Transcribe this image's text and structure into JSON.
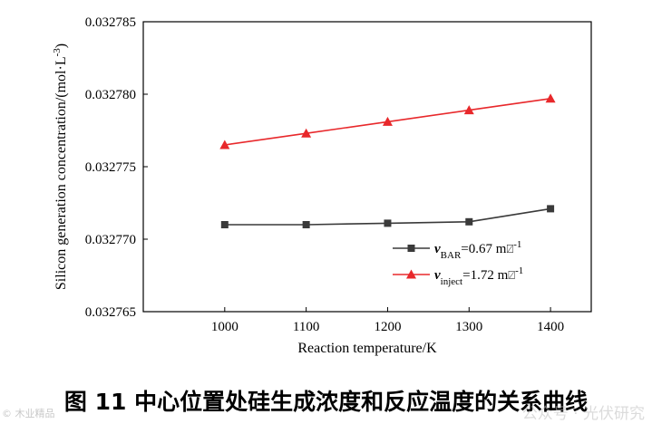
{
  "chart_data": {
    "type": "line",
    "xlabel": "Reaction temperature/K",
    "ylabel": "Silicon generation concentration/(mol·L",
    "ylabel_sup": "-3",
    "ylabel_close": ")",
    "x": [
      1000,
      1100,
      1200,
      1300,
      1400
    ],
    "xlim": [
      900,
      1450
    ],
    "ylim": [
      0.032765,
      0.032785
    ],
    "xticks": [
      1000,
      1100,
      1200,
      1300,
      1400
    ],
    "xtick_labels": [
      "1000",
      "1100",
      "1200",
      "1300",
      "1400"
    ],
    "yticks": [
      0.032765,
      0.03277,
      0.032775,
      0.03278,
      0.032785
    ],
    "ytick_labels": [
      "0.032765",
      "0.032770",
      "0.032775",
      "0.032780",
      "0.032785"
    ],
    "legend_position": "lower-right",
    "series": [
      {
        "name": "v_BAR=0.67 m/s",
        "legend_v": "v",
        "legend_sub": "BAR",
        "legend_text": "=0.67 m",
        "legend_unit_glyph": "⍁",
        "legend_sup": "-1",
        "color": "#3a3a3a",
        "marker": "square",
        "values": [
          0.032771,
          0.032771,
          0.0327711,
          0.0327712,
          0.0327721
        ]
      },
      {
        "name": "v_inject=1.72 m/s",
        "legend_v": "v",
        "legend_sub": "inject",
        "legend_text": "=1.72 m",
        "legend_unit_glyph": "⍁",
        "legend_sup": "-1",
        "color": "#e8282b",
        "marker": "triangle",
        "values": [
          0.0327765,
          0.0327773,
          0.0327781,
          0.0327789,
          0.0327797
        ]
      }
    ]
  },
  "caption": "图 11 中心位置处硅生成浓度和反应温度的关系曲线",
  "watermark_left": "© 木业精品",
  "watermark_right": "公众号 · 光伏研究"
}
